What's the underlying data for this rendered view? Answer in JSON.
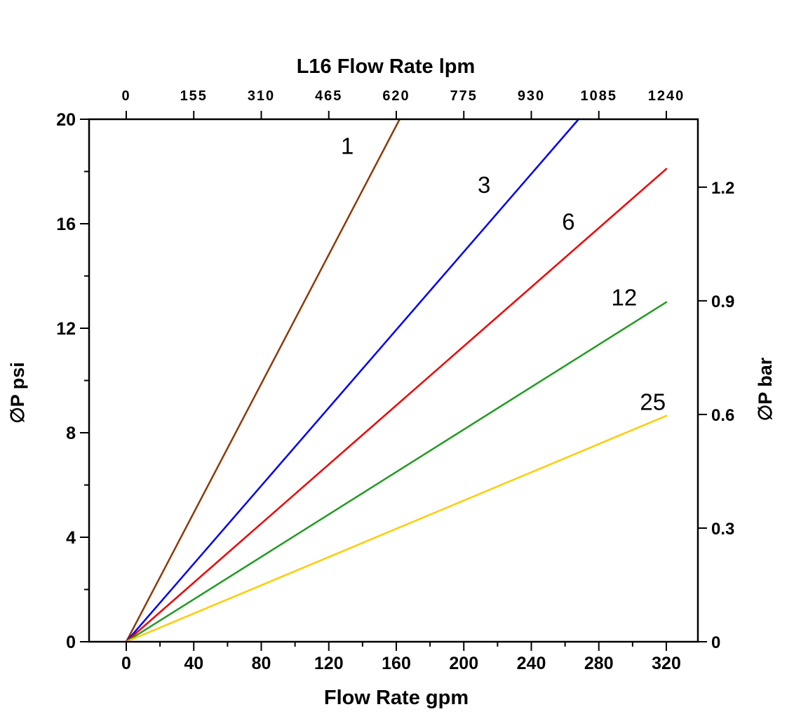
{
  "chart_data": {
    "type": "line",
    "grid": false,
    "legend": "inline-labels",
    "top_axis": {
      "title": "L16 Flow Rate lpm",
      "ticks": [
        0,
        155,
        310,
        465,
        620,
        775,
        930,
        1085,
        1240
      ],
      "max": 1240
    },
    "bottom_axis": {
      "title": "Flow Rate gpm",
      "ticks": [
        0,
        40,
        80,
        120,
        160,
        200,
        240,
        280,
        320
      ],
      "minor_step": 20,
      "max": 320
    },
    "left_axis": {
      "title": "∅P psi",
      "ticks": [
        0,
        4,
        8,
        12,
        16,
        20
      ],
      "minor_step": 2,
      "max": 20
    },
    "right_axis": {
      "title": "∅P bar",
      "ticks": [
        0,
        0.3,
        0.6,
        0.9,
        1.2
      ],
      "psi_per_bar": 14.5
    },
    "series": [
      {
        "name": "1",
        "color": "#8B3A0A",
        "points": [
          [
            0,
            0
          ],
          [
            162,
            20
          ]
        ],
        "label_at": {
          "x": 131,
          "y": 19.0
        }
      },
      {
        "name": "3",
        "color": "#0000EE",
        "points": [
          [
            0,
            0
          ],
          [
            268,
            20
          ]
        ],
        "label_at": {
          "x": 212,
          "y": 17.5
        }
      },
      {
        "name": "6",
        "color": "#EE0000",
        "points": [
          [
            0,
            0
          ],
          [
            320,
            18.1
          ]
        ],
        "label_at": {
          "x": 262,
          "y": 16.1
        }
      },
      {
        "name": "12",
        "color": "#239B23",
        "points": [
          [
            0,
            0
          ],
          [
            320,
            13.0
          ]
        ],
        "label_at": {
          "x": 295,
          "y": 13.2
        }
      },
      {
        "name": "25",
        "color": "#FFCC00",
        "points": [
          [
            0,
            0
          ],
          [
            320,
            8.65
          ]
        ],
        "label_at": {
          "x": 312,
          "y": 9.2
        }
      }
    ]
  }
}
